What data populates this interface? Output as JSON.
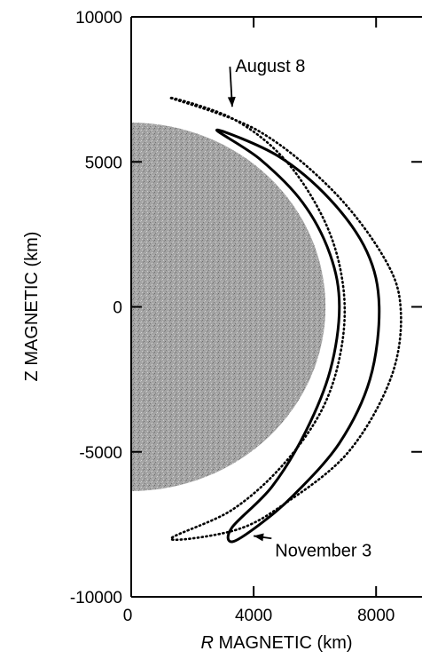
{
  "chart_data": {
    "type": "line",
    "title": "",
    "xlabel": {
      "prefix": "R",
      "text": " MAGNETIC (km)"
    },
    "ylabel": "Z MAGNETIC (km)",
    "xlim": [
      0,
      9500
    ],
    "ylim": [
      -10000,
      10000
    ],
    "xticks": [
      {
        "value": 0,
        "label": "0"
      },
      {
        "value": 4000,
        "label": "4000"
      },
      {
        "value": 8000,
        "label": "8000"
      }
    ],
    "yticks": [
      {
        "value": 10000,
        "label": "10000"
      },
      {
        "value": 5000,
        "label": "5000"
      },
      {
        "value": 0,
        "label": "0"
      },
      {
        "value": -5000,
        "label": "-5000"
      },
      {
        "value": -10000,
        "label": "-10000"
      }
    ],
    "planet": {
      "type": "half-disk",
      "radius": 6350,
      "color": "#9a9a9a"
    },
    "series": [
      {
        "name": "August 8",
        "style": "dotted",
        "outer": [
          [
            1300,
            7200
          ],
          [
            4100,
            6100
          ],
          [
            6500,
            4100
          ],
          [
            8200,
            1800
          ],
          [
            8800,
            0
          ],
          [
            8500,
            -2400
          ],
          [
            7100,
            -5000
          ],
          [
            5000,
            -6800
          ],
          [
            3400,
            -7700
          ],
          [
            1300,
            -8000
          ]
        ],
        "inner": [
          [
            1300,
            7200
          ],
          [
            3300,
            6500
          ],
          [
            5000,
            5100
          ],
          [
            6300,
            3000
          ],
          [
            6900,
            900
          ],
          [
            6900,
            -1200
          ],
          [
            6300,
            -3400
          ],
          [
            5000,
            -5400
          ],
          [
            3300,
            -7000
          ],
          [
            1300,
            -8000
          ]
        ]
      },
      {
        "name": "November 3",
        "style": "solid",
        "outer": [
          [
            2800,
            6100
          ],
          [
            4800,
            5200
          ],
          [
            6500,
            3700
          ],
          [
            7700,
            1900
          ],
          [
            8100,
            0
          ],
          [
            7800,
            -2500
          ],
          [
            6800,
            -4700
          ],
          [
            5300,
            -6500
          ],
          [
            4200,
            -7500
          ],
          [
            3300,
            -8100
          ]
        ],
        "inner": [
          [
            2800,
            6100
          ],
          [
            4200,
            5100
          ],
          [
            5600,
            3600
          ],
          [
            6500,
            1800
          ],
          [
            6800,
            0
          ],
          [
            6500,
            -2200
          ],
          [
            5700,
            -4300
          ],
          [
            4600,
            -6200
          ],
          [
            3300,
            -7600
          ],
          [
            3300,
            -8100
          ]
        ]
      }
    ],
    "annotations": [
      {
        "text": "August 8",
        "series": "August 8",
        "anchor": [
          3400,
          8100
        ],
        "points_to": [
          3300,
          6900
        ]
      },
      {
        "text": "November 3",
        "series": "November 3",
        "anchor": [
          4700,
          -8600
        ],
        "points_to": [
          4000,
          -7900
        ]
      }
    ]
  }
}
